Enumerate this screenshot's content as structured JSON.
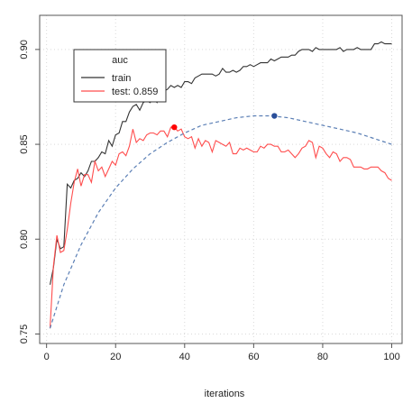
{
  "chart_data": {
    "type": "line",
    "title": "",
    "xlabel": "iterations",
    "ylabel": "",
    "xlim": [
      -2,
      103
    ],
    "ylim": [
      0.745,
      0.918
    ],
    "x_ticks": [
      0,
      20,
      40,
      60,
      80,
      100
    ],
    "y_ticks": [
      0.75,
      0.8,
      0.85,
      0.9
    ],
    "y_tick_labels": [
      "0.75",
      "0.80",
      "0.85",
      "0.90"
    ],
    "grid": true,
    "legend": {
      "title": "auc",
      "placement": "top-left",
      "entries": [
        "train",
        "test: 0.859"
      ]
    },
    "series": [
      {
        "name": "train",
        "color": "#333333",
        "x": [
          1,
          2,
          3,
          4,
          5,
          6,
          7,
          8,
          9,
          10,
          11,
          12,
          13,
          14,
          15,
          16,
          17,
          18,
          19,
          20,
          21,
          22,
          23,
          24,
          25,
          26,
          27,
          28,
          29,
          30,
          31,
          32,
          33,
          34,
          35,
          36,
          37,
          38,
          39,
          40,
          41,
          42,
          43,
          44,
          45,
          46,
          47,
          48,
          49,
          50,
          51,
          52,
          53,
          54,
          55,
          56,
          57,
          58,
          59,
          60,
          61,
          62,
          63,
          64,
          65,
          66,
          67,
          68,
          69,
          70,
          71,
          72,
          73,
          74,
          75,
          76,
          77,
          78,
          79,
          80,
          81,
          82,
          83,
          84,
          85,
          86,
          87,
          88,
          89,
          90,
          91,
          92,
          93,
          94,
          95,
          96,
          97,
          98,
          99,
          100
        ],
        "values": [
          0.776,
          0.785,
          0.8,
          0.795,
          0.796,
          0.829,
          0.827,
          0.831,
          0.832,
          0.835,
          0.833,
          0.836,
          0.841,
          0.841,
          0.843,
          0.846,
          0.845,
          0.852,
          0.849,
          0.855,
          0.856,
          0.862,
          0.862,
          0.867,
          0.87,
          0.871,
          0.868,
          0.872,
          0.873,
          0.872,
          0.874,
          0.872,
          0.876,
          0.878,
          0.879,
          0.881,
          0.88,
          0.881,
          0.88,
          0.883,
          0.883,
          0.882,
          0.885,
          0.886,
          0.887,
          0.887,
          0.887,
          0.887,
          0.886,
          0.887,
          0.89,
          0.888,
          0.888,
          0.889,
          0.888,
          0.889,
          0.891,
          0.891,
          0.892,
          0.891,
          0.892,
          0.893,
          0.893,
          0.893,
          0.895,
          0.894,
          0.895,
          0.896,
          0.896,
          0.896,
          0.897,
          0.897,
          0.899,
          0.9,
          0.9,
          0.9,
          0.899,
          0.901,
          0.9,
          0.9,
          0.9,
          0.9,
          0.9,
          0.9,
          0.901,
          0.899,
          0.9,
          0.9,
          0.9,
          0.901,
          0.9,
          0.9,
          0.9,
          0.9,
          0.903,
          0.903,
          0.904,
          0.903,
          0.903,
          0.903
        ]
      },
      {
        "name": "test: 0.859",
        "color": "#ff4d4d",
        "x": [
          1,
          2,
          3,
          4,
          5,
          6,
          7,
          8,
          9,
          10,
          11,
          12,
          13,
          14,
          15,
          16,
          17,
          18,
          19,
          20,
          21,
          22,
          23,
          24,
          25,
          26,
          27,
          28,
          29,
          30,
          31,
          32,
          33,
          34,
          35,
          36,
          37,
          38,
          39,
          40,
          41,
          42,
          43,
          44,
          45,
          46,
          47,
          48,
          49,
          50,
          51,
          52,
          53,
          54,
          55,
          56,
          57,
          58,
          59,
          60,
          61,
          62,
          63,
          64,
          65,
          66,
          67,
          68,
          69,
          70,
          71,
          72,
          73,
          74,
          75,
          76,
          77,
          78,
          79,
          80,
          81,
          82,
          83,
          84,
          85,
          86,
          87,
          88,
          89,
          90,
          91,
          92,
          93,
          94,
          95,
          96,
          97,
          98,
          99,
          100
        ],
        "values": [
          0.753,
          0.786,
          0.802,
          0.793,
          0.794,
          0.805,
          0.819,
          0.83,
          0.837,
          0.828,
          0.834,
          0.834,
          0.83,
          0.841,
          0.836,
          0.838,
          0.833,
          0.837,
          0.841,
          0.839,
          0.845,
          0.846,
          0.844,
          0.849,
          0.858,
          0.851,
          0.853,
          0.852,
          0.855,
          0.856,
          0.856,
          0.855,
          0.857,
          0.857,
          0.854,
          0.859,
          0.859,
          0.857,
          0.858,
          0.854,
          0.853,
          0.854,
          0.848,
          0.853,
          0.849,
          0.852,
          0.851,
          0.846,
          0.852,
          0.851,
          0.85,
          0.849,
          0.851,
          0.845,
          0.845,
          0.848,
          0.847,
          0.848,
          0.847,
          0.846,
          0.846,
          0.849,
          0.848,
          0.85,
          0.85,
          0.849,
          0.849,
          0.846,
          0.846,
          0.847,
          0.845,
          0.843,
          0.845,
          0.848,
          0.849,
          0.852,
          0.851,
          0.843,
          0.849,
          0.848,
          0.845,
          0.843,
          0.846,
          0.845,
          0.841,
          0.843,
          0.843,
          0.842,
          0.838,
          0.838,
          0.838,
          0.837,
          0.837,
          0.838,
          0.838,
          0.838,
          0.836,
          0.835,
          0.832,
          0.831
        ]
      },
      {
        "name": "",
        "color": "#5b7fb5",
        "style": "dashed",
        "x": [
          1,
          5,
          10,
          15,
          20,
          25,
          30,
          35,
          40,
          45,
          50,
          55,
          60,
          65,
          70,
          75,
          80,
          85,
          90,
          95,
          100
        ],
        "values": [
          0.753,
          0.776,
          0.797,
          0.814,
          0.827,
          0.837,
          0.845,
          0.851,
          0.856,
          0.86,
          0.862,
          0.864,
          0.865,
          0.865,
          0.864,
          0.862,
          0.86,
          0.858,
          0.856,
          0.853,
          0.85
        ]
      }
    ],
    "markers": [
      {
        "x": 37,
        "y": 0.859,
        "color": "#ff0000"
      },
      {
        "x": 66,
        "y": 0.865,
        "color": "#2a4f9a"
      }
    ]
  }
}
